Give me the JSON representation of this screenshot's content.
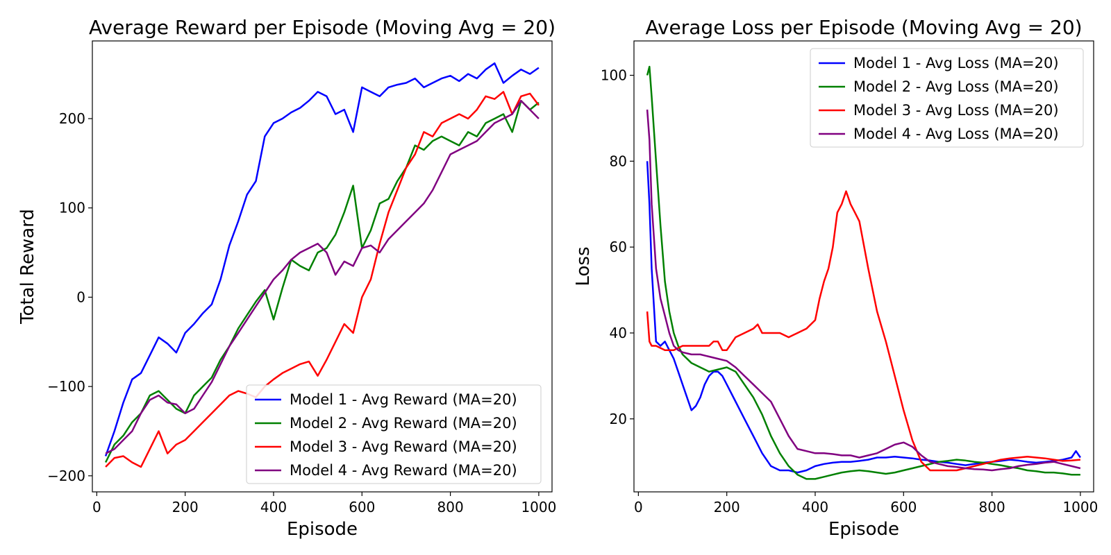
{
  "chart_data": [
    {
      "type": "line",
      "title": "Average Reward per Episode (Moving Avg = 20)",
      "xlabel": "Episode",
      "ylabel": "Total Reward",
      "xlim": [
        -10,
        1030
      ],
      "ylim": [
        -218,
        287
      ],
      "x_ticks": [
        0,
        200,
        400,
        600,
        800,
        1000
      ],
      "x_tick_labels": [
        "0",
        "200",
        "400",
        "600",
        "800",
        "1000"
      ],
      "y_ticks": [
        -200,
        -100,
        0,
        100,
        200
      ],
      "y_tick_labels": [
        "−200",
        "−100",
        "0",
        "100",
        "200"
      ],
      "grid": false,
      "legend_position": "lower-right",
      "series": [
        {
          "name": "Model 1 - Avg Reward (MA=20)",
          "color": "#0000ff",
          "x": [
            20,
            40,
            60,
            80,
            100,
            120,
            140,
            160,
            180,
            200,
            220,
            240,
            260,
            280,
            300,
            320,
            340,
            360,
            380,
            400,
            420,
            440,
            460,
            480,
            500,
            520,
            540,
            560,
            580,
            600,
            620,
            640,
            660,
            680,
            700,
            720,
            740,
            760,
            780,
            800,
            820,
            840,
            860,
            880,
            900,
            920,
            940,
            960,
            980,
            1000
          ],
          "y": [
            -178,
            -150,
            -118,
            -92,
            -85,
            -65,
            -45,
            -52,
            -62,
            -40,
            -30,
            -18,
            -8,
            20,
            58,
            85,
            115,
            130,
            180,
            195,
            200,
            207,
            212,
            220,
            230,
            225,
            205,
            210,
            185,
            235,
            230,
            225,
            235,
            238,
            240,
            245,
            235,
            240,
            245,
            248,
            242,
            250,
            245,
            255,
            262,
            240,
            248,
            255,
            250,
            257
          ]
        },
        {
          "name": "Model 2 - Avg Reward (MA=20)",
          "color": "#008000",
          "x": [
            20,
            40,
            60,
            80,
            100,
            120,
            140,
            160,
            180,
            200,
            220,
            240,
            260,
            280,
            300,
            320,
            340,
            360,
            380,
            400,
            420,
            440,
            460,
            480,
            500,
            520,
            540,
            560,
            580,
            600,
            620,
            640,
            660,
            680,
            700,
            720,
            740,
            760,
            780,
            800,
            820,
            840,
            860,
            880,
            900,
            920,
            940,
            960,
            980,
            1000
          ],
          "y": [
            -185,
            -165,
            -155,
            -140,
            -130,
            -110,
            -105,
            -115,
            -125,
            -130,
            -110,
            -100,
            -90,
            -70,
            -55,
            -35,
            -20,
            -5,
            8,
            -25,
            10,
            42,
            35,
            30,
            50,
            55,
            70,
            95,
            125,
            55,
            75,
            105,
            110,
            130,
            145,
            170,
            165,
            175,
            180,
            175,
            170,
            185,
            180,
            195,
            200,
            205,
            185,
            220,
            210,
            218
          ]
        },
        {
          "name": "Model 3 - Avg Reward (MA=20)",
          "color": "#ff0000",
          "x": [
            20,
            40,
            60,
            80,
            100,
            120,
            140,
            160,
            180,
            200,
            220,
            240,
            260,
            280,
            300,
            320,
            340,
            360,
            380,
            400,
            420,
            440,
            460,
            480,
            500,
            520,
            540,
            560,
            580,
            600,
            620,
            640,
            660,
            680,
            700,
            720,
            740,
            760,
            780,
            800,
            820,
            840,
            860,
            880,
            900,
            920,
            940,
            960,
            980,
            1000
          ],
          "y": [
            -190,
            -180,
            -178,
            -185,
            -190,
            -170,
            -150,
            -175,
            -165,
            -160,
            -150,
            -140,
            -130,
            -120,
            -110,
            -105,
            -108,
            -112,
            -100,
            -92,
            -85,
            -80,
            -75,
            -72,
            -88,
            -70,
            -50,
            -30,
            -40,
            0,
            20,
            60,
            95,
            120,
            145,
            160,
            185,
            180,
            195,
            200,
            205,
            200,
            210,
            225,
            222,
            230,
            205,
            225,
            228,
            215
          ]
        },
        {
          "name": "Model 4 - Avg Reward (MA=20)",
          "color": "#800080",
          "x": [
            20,
            40,
            60,
            80,
            100,
            120,
            140,
            160,
            180,
            200,
            220,
            240,
            260,
            280,
            300,
            320,
            340,
            360,
            380,
            400,
            420,
            440,
            460,
            480,
            500,
            520,
            540,
            560,
            580,
            600,
            620,
            640,
            660,
            680,
            700,
            720,
            740,
            760,
            780,
            800,
            820,
            840,
            860,
            880,
            900,
            920,
            940,
            960,
            980,
            1000
          ],
          "y": [
            -175,
            -170,
            -160,
            -150,
            -130,
            -115,
            -110,
            -118,
            -120,
            -130,
            -125,
            -110,
            -95,
            -75,
            -55,
            -40,
            -25,
            -10,
            5,
            20,
            30,
            42,
            50,
            55,
            60,
            50,
            25,
            40,
            35,
            55,
            58,
            50,
            65,
            75,
            85,
            95,
            105,
            120,
            140,
            160,
            165,
            170,
            175,
            185,
            195,
            200,
            205,
            220,
            210,
            200
          ]
        }
      ]
    },
    {
      "type": "line",
      "title": "Average Loss per Episode (Moving Avg = 20)",
      "xlabel": "Episode",
      "ylabel": "Loss",
      "xlim": [
        -10,
        1030
      ],
      "ylim": [
        3,
        108
      ],
      "x_ticks": [
        0,
        200,
        400,
        600,
        800,
        1000
      ],
      "x_tick_labels": [
        "0",
        "200",
        "400",
        "600",
        "800",
        "1000"
      ],
      "y_ticks": [
        20,
        40,
        60,
        80,
        100
      ],
      "y_tick_labels": [
        "20",
        "40",
        "60",
        "80",
        "100"
      ],
      "grid": false,
      "legend_position": "upper-right",
      "series": [
        {
          "name": "Model 1 - Avg Loss (MA=20)",
          "color": "#0000ff",
          "x": [
            20,
            25,
            30,
            40,
            50,
            60,
            70,
            80,
            90,
            100,
            110,
            120,
            130,
            140,
            150,
            160,
            170,
            180,
            190,
            200,
            220,
            240,
            260,
            280,
            300,
            320,
            340,
            360,
            380,
            400,
            420,
            440,
            460,
            480,
            500,
            520,
            540,
            560,
            580,
            600,
            620,
            640,
            660,
            680,
            700,
            720,
            740,
            760,
            780,
            800,
            820,
            840,
            860,
            880,
            900,
            920,
            940,
            960,
            980,
            990,
            1000
          ],
          "y": [
            80,
            70,
            55,
            38,
            37,
            38,
            36,
            34,
            31,
            28,
            25,
            22,
            23,
            25,
            28,
            30,
            31,
            31,
            30,
            28,
            24,
            20,
            16,
            12,
            9,
            8,
            8,
            7.5,
            8,
            9,
            9.5,
            9.8,
            10,
            10,
            10.2,
            10.5,
            11,
            11,
            11.2,
            11,
            10.8,
            10.5,
            10.3,
            10,
            9.8,
            9.5,
            9.2,
            9.5,
            9.8,
            10,
            10.2,
            10.5,
            10.3,
            10,
            9.8,
            10,
            10.2,
            10.5,
            11,
            12.5,
            11
          ]
        },
        {
          "name": "Model 2 - Avg Loss (MA=20)",
          "color": "#008000",
          "x": [
            20,
            25,
            30,
            40,
            50,
            60,
            70,
            80,
            90,
            100,
            120,
            140,
            160,
            180,
            200,
            220,
            240,
            260,
            280,
            300,
            320,
            340,
            360,
            380,
            400,
            420,
            440,
            460,
            480,
            500,
            520,
            540,
            560,
            580,
            600,
            620,
            640,
            660,
            680,
            700,
            720,
            740,
            760,
            780,
            800,
            820,
            840,
            860,
            880,
            900,
            920,
            940,
            960,
            980,
            1000
          ],
          "y": [
            100,
            102,
            95,
            80,
            65,
            52,
            45,
            40,
            37,
            35,
            33,
            32,
            31,
            31.5,
            32,
            31,
            28,
            25,
            21,
            16,
            12,
            9,
            7,
            6,
            6,
            6.5,
            7,
            7.5,
            7.8,
            8,
            7.8,
            7.5,
            7.2,
            7.5,
            8,
            8.5,
            9,
            9.5,
            10,
            10.2,
            10.5,
            10.3,
            10,
            9.8,
            9.5,
            9.2,
            8.8,
            8.5,
            8,
            7.8,
            7.5,
            7.5,
            7.3,
            7,
            7
          ]
        },
        {
          "name": "Model 3 - Avg Loss (MA=20)",
          "color": "#ff0000",
          "x": [
            20,
            25,
            30,
            40,
            60,
            80,
            100,
            120,
            140,
            160,
            170,
            180,
            190,
            200,
            220,
            240,
            260,
            270,
            280,
            300,
            320,
            340,
            360,
            380,
            400,
            410,
            420,
            430,
            440,
            450,
            460,
            470,
            480,
            490,
            500,
            520,
            540,
            560,
            580,
            600,
            620,
            640,
            660,
            680,
            700,
            720,
            740,
            760,
            780,
            800,
            820,
            840,
            860,
            880,
            900,
            920,
            940,
            960,
            980,
            1000
          ],
          "y": [
            45,
            38,
            37,
            37,
            36,
            36,
            37,
            37,
            37,
            37,
            38,
            38,
            36,
            36,
            39,
            40,
            41,
            42,
            40,
            40,
            40,
            39,
            40,
            41,
            43,
            48,
            52,
            55,
            60,
            68,
            70,
            73,
            70,
            68,
            66,
            55,
            45,
            38,
            30,
            22,
            15,
            10,
            8,
            8,
            8,
            8,
            8.5,
            9,
            9.5,
            10,
            10.5,
            10.8,
            11,
            11.2,
            11,
            10.8,
            10.5,
            10.2,
            10.3,
            10.5
          ]
        },
        {
          "name": "Model 4 - Avg Loss (MA=20)",
          "color": "#800080",
          "x": [
            20,
            25,
            30,
            40,
            50,
            60,
            70,
            80,
            90,
            100,
            120,
            140,
            160,
            180,
            200,
            220,
            240,
            260,
            280,
            300,
            320,
            340,
            360,
            380,
            400,
            420,
            440,
            460,
            480,
            500,
            520,
            540,
            560,
            580,
            600,
            620,
            640,
            660,
            680,
            700,
            720,
            740,
            760,
            780,
            800,
            820,
            840,
            860,
            880,
            900,
            920,
            940,
            960,
            980,
            1000
          ],
          "y": [
            92,
            85,
            70,
            55,
            48,
            44,
            40,
            37,
            36,
            35.5,
            35,
            35,
            34.5,
            34,
            33.5,
            32,
            30,
            28,
            26,
            24,
            20,
            16,
            13,
            12.5,
            12,
            12,
            11.8,
            11.5,
            11.5,
            11,
            11.5,
            12,
            13,
            14,
            14.5,
            13.5,
            11.5,
            10,
            9.5,
            9,
            8.8,
            8.5,
            8.3,
            8.2,
            8,
            8.3,
            8.5,
            9,
            9.3,
            9.5,
            9.8,
            10,
            9.5,
            9,
            8.5
          ]
        }
      ]
    }
  ]
}
